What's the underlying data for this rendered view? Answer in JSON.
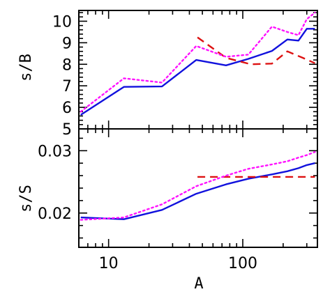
{
  "chart_data": [
    {
      "type": "line",
      "xscale": "log",
      "xlim": [
        6,
        360
      ],
      "ylim": [
        5,
        10.5
      ],
      "ylabel": "s/B",
      "yticks": [
        5,
        6,
        7,
        8,
        9,
        10
      ],
      "yticklabels": [
        "5",
        "6",
        "7",
        "8",
        "9",
        "10"
      ],
      "series": [
        {
          "color": "#1111dd",
          "style": "solid",
          "x": [
            6.2,
            13,
            25,
            45,
            75,
            110,
            165,
            215,
            260,
            300,
            345
          ],
          "y": [
            5.65,
            6.95,
            6.97,
            8.2,
            7.95,
            8.25,
            8.62,
            9.15,
            9.1,
            9.65,
            9.65
          ]
        },
        {
          "color": "#dd1111",
          "style": "dashed",
          "x": [
            46,
            75,
            115,
            165,
            215,
            280,
            345
          ],
          "y": [
            9.25,
            8.3,
            8.0,
            8.03,
            8.6,
            8.3,
            8.05
          ]
        },
        {
          "color": "#ff11ff",
          "style": "dotted",
          "x": [
            6.2,
            13,
            25,
            45,
            75,
            110,
            165,
            215,
            260,
            300,
            345
          ],
          "y": [
            5.8,
            7.35,
            7.15,
            8.85,
            8.35,
            8.45,
            9.75,
            9.5,
            9.35,
            10.1,
            10.4
          ]
        }
      ]
    },
    {
      "type": "line",
      "xscale": "log",
      "xlim": [
        6,
        360
      ],
      "ylim": [
        0.0145,
        0.0335
      ],
      "xlabel": "A",
      "ylabel": "s/S",
      "xticks": [
        10,
        100
      ],
      "xticklabels": [
        "10",
        "100"
      ],
      "yticks": [
        0.02,
        0.03
      ],
      "yticklabels": [
        "0.02",
        "0.03"
      ],
      "series": [
        {
          "color": "#1111dd",
          "style": "solid",
          "x": [
            6.2,
            13,
            25,
            45,
            75,
            110,
            165,
            215,
            260,
            300,
            345
          ],
          "y": [
            0.0193,
            0.019,
            0.0205,
            0.0231,
            0.0246,
            0.0255,
            0.0262,
            0.0267,
            0.0272,
            0.0277,
            0.028
          ]
        },
        {
          "color": "#dd1111",
          "style": "dashed",
          "x": [
            46,
            75,
            115,
            165,
            215,
            280,
            345
          ],
          "y": [
            0.0258,
            0.0258,
            0.0258,
            0.0258,
            0.0258,
            0.0258,
            0.0258
          ]
        },
        {
          "color": "#ff11ff",
          "style": "dotted",
          "x": [
            6.2,
            13,
            25,
            45,
            75,
            110,
            165,
            215,
            260,
            300,
            345
          ],
          "y": [
            0.0189,
            0.0193,
            0.0214,
            0.0243,
            0.026,
            0.0271,
            0.0278,
            0.0283,
            0.0289,
            0.0293,
            0.0298
          ]
        }
      ]
    }
  ]
}
